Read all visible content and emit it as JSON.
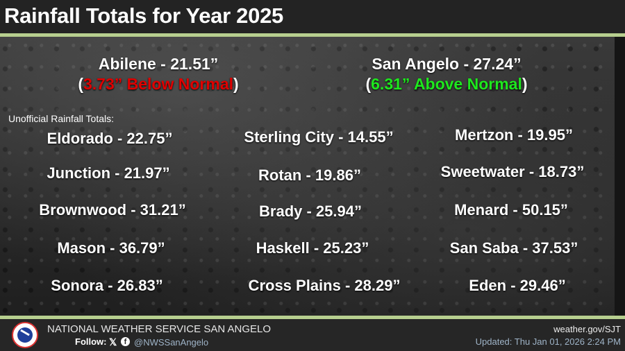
{
  "header": {
    "title": "Rainfall Totals for Year 2025"
  },
  "featured": [
    {
      "name": "Abilene - 21.51”",
      "departure": "3.73” Below Normal",
      "status": "below",
      "color": "#e00000"
    },
    {
      "name": "San Angelo - 27.24”",
      "departure": "6.31” Above Normal",
      "status": "above",
      "color": "#1ee81e"
    }
  ],
  "paren_open": "(",
  "paren_close": ")",
  "unofficial_label": "Unofficial Rainfall Totals:",
  "columns": [
    [
      "Eldorado - 22.75”",
      "Junction - 21.97”",
      "Brownwood - 31.21”",
      "Mason - 36.79”",
      "Sonora - 26.83”"
    ],
    [
      "Sterling City - 14.55”",
      "Rotan - 19.86”",
      "Brady - 25.94”",
      "Haskell - 25.23”",
      "Cross Plains - 28.29”"
    ],
    [
      "Mertzon - 19.95”",
      "Sweetwater - 18.73”",
      "Menard - 50.15”",
      "San Saba - 37.53”",
      "Eden - 29.46”"
    ]
  ],
  "footer": {
    "org": "NATIONAL WEATHER SERVICE SAN ANGELO",
    "follow": "Follow:",
    "x_icon": "𝕏",
    "fb_icon": "f",
    "handle": "@NWSSanAngelo",
    "site": "weather.gov/SJT",
    "updated": "Updated: Thu Jan 01, 2026 2:24 PM"
  }
}
